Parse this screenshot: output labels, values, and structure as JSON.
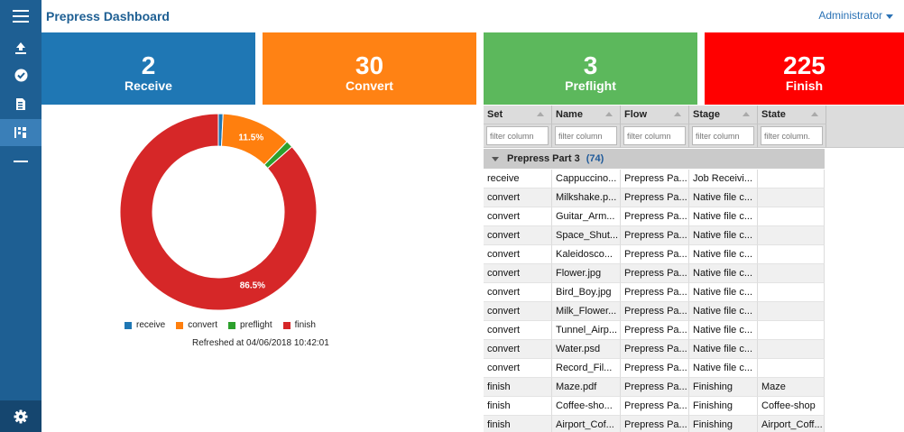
{
  "header": {
    "title": "Prepress Dashboard",
    "user": "Administrator"
  },
  "sidebar": {
    "items": [
      {
        "name": "upload-icon"
      },
      {
        "name": "check-circle-icon"
      },
      {
        "name": "document-icon"
      },
      {
        "name": "dashboard-icon"
      },
      {
        "name": "divider-icon"
      }
    ],
    "settings_icon": "gear-icon"
  },
  "tiles": [
    {
      "value": "2",
      "label": "Receive",
      "color": "#1f77b4"
    },
    {
      "value": "30",
      "label": "Convert",
      "color": "#ff8214"
    },
    {
      "value": "3",
      "label": "Preflight",
      "color": "#5cb85c"
    },
    {
      "value": "225",
      "label": "Finish",
      "color": "#ff0000"
    }
  ],
  "chart_data": {
    "type": "pie",
    "donut": true,
    "categories": [
      "receive",
      "convert",
      "preflight",
      "finish"
    ],
    "values": [
      2,
      30,
      3,
      225
    ],
    "colors": [
      "#1f77b4",
      "#ff7f0e",
      "#2ca02c",
      "#d62728"
    ],
    "data_labels": [
      {
        "category": "convert",
        "text": "11.5%"
      },
      {
        "category": "finish",
        "text": "86.5%"
      }
    ],
    "legend_position": "bottom",
    "refreshed": "Refreshed at 04/06/2018 10:42:01"
  },
  "table": {
    "columns": [
      "Set",
      "Name",
      "Flow",
      "Stage",
      "State"
    ],
    "filter_placeholders": [
      "filter column",
      "filter column",
      "filter column",
      "filter column",
      "filter column."
    ],
    "group": {
      "label": "Prepress Part 3",
      "count": "(74)"
    },
    "rows": [
      [
        "receive",
        "Cappuccino...",
        "Prepress Pa...",
        "Job Receivi...",
        ""
      ],
      [
        "convert",
        "Milkshake.p...",
        "Prepress Pa...",
        "Native file c...",
        ""
      ],
      [
        "convert",
        "Guitar_Arm...",
        "Prepress Pa...",
        "Native file c...",
        ""
      ],
      [
        "convert",
        "Space_Shut...",
        "Prepress Pa...",
        "Native file c...",
        ""
      ],
      [
        "convert",
        "Kaleidosco...",
        "Prepress Pa...",
        "Native file c...",
        ""
      ],
      [
        "convert",
        "Flower.jpg",
        "Prepress Pa...",
        "Native file c...",
        ""
      ],
      [
        "convert",
        "Bird_Boy.jpg",
        "Prepress Pa...",
        "Native file c...",
        ""
      ],
      [
        "convert",
        "Milk_Flower...",
        "Prepress Pa...",
        "Native file c...",
        ""
      ],
      [
        "convert",
        "Tunnel_Airp...",
        "Prepress Pa...",
        "Native file c...",
        ""
      ],
      [
        "convert",
        "Water.psd",
        "Prepress Pa...",
        "Native file c...",
        ""
      ],
      [
        "convert",
        "Record_Fil...",
        "Prepress Pa...",
        "Native file c...",
        ""
      ],
      [
        "finish",
        "Maze.pdf",
        "Prepress Pa...",
        "Finishing",
        "Maze"
      ],
      [
        "finish",
        "Coffee-sho...",
        "Prepress Pa...",
        "Finishing",
        "Coffee-shop"
      ],
      [
        "finish",
        "Airport_Cof...",
        "Prepress Pa...",
        "Finishing",
        "Airport_Coff..."
      ]
    ]
  }
}
